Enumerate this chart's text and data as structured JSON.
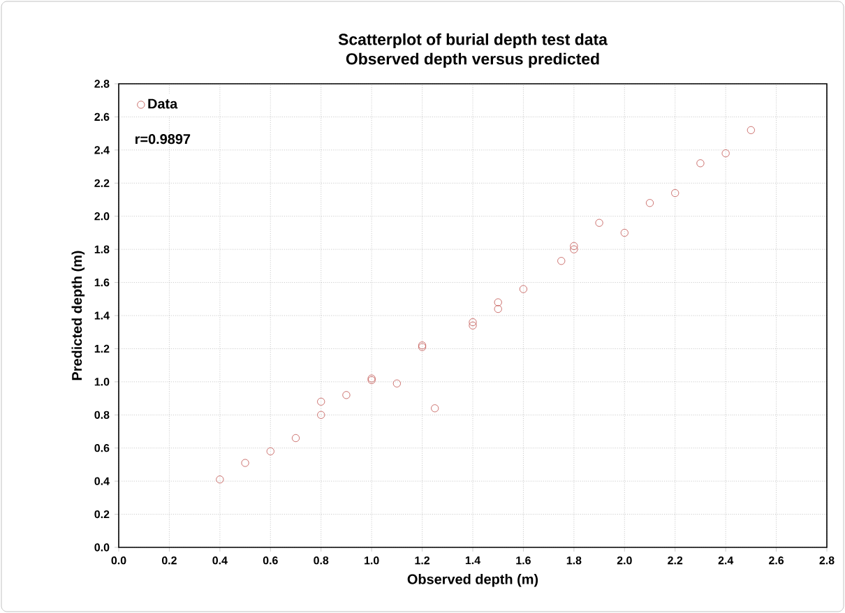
{
  "chart_data": {
    "type": "scatter",
    "title": "Scatterplot of burial depth test data\nObserved  depth versus predicted",
    "xlabel": "Observed depth (m)",
    "ylabel": "Predicted depth (m)",
    "series": [
      {
        "name": "Data",
        "color": "#c0504d",
        "x": [
          0.4,
          0.5,
          0.6,
          0.7,
          0.8,
          0.8,
          0.9,
          1.0,
          1.0,
          1.1,
          1.2,
          1.2,
          1.25,
          1.4,
          1.4,
          1.5,
          1.5,
          1.6,
          1.75,
          1.8,
          1.8,
          1.9,
          2.0,
          2.1,
          2.2,
          2.3,
          2.4,
          2.5
        ],
        "values": [
          0.41,
          0.51,
          0.58,
          0.66,
          0.88,
          0.8,
          0.92,
          1.02,
          1.01,
          0.99,
          1.21,
          1.22,
          0.84,
          1.34,
          1.36,
          1.44,
          1.48,
          1.56,
          1.73,
          1.8,
          1.82,
          1.96,
          1.9,
          2.08,
          2.14,
          2.32,
          2.38,
          2.52
        ]
      }
    ],
    "annotations": [
      "r=0.9897"
    ],
    "xlim": [
      0,
      2.8
    ],
    "ylim": [
      0,
      2.8
    ],
    "xticks": [
      {
        "value": 0,
        "label": "0.0"
      },
      {
        "value": 0.2,
        "label": "0.2"
      },
      {
        "value": 0.4,
        "label": "0.4"
      },
      {
        "value": 0.6,
        "label": "0.6"
      },
      {
        "value": 0.8,
        "label": "0.8"
      },
      {
        "value": 1,
        "label": "1.0"
      },
      {
        "value": 1.2,
        "label": "1.2"
      },
      {
        "value": 1.4,
        "label": "1.4"
      },
      {
        "value": 1.6,
        "label": "1.6"
      },
      {
        "value": 1.8,
        "label": "1.8"
      },
      {
        "value": 2,
        "label": "2.0"
      },
      {
        "value": 2.2,
        "label": "2.2"
      },
      {
        "value": 2.4,
        "label": "2.4"
      },
      {
        "value": 2.6,
        "label": "2.6"
      },
      {
        "value": 2.8,
        "label": "2.8"
      }
    ],
    "yticks": [
      {
        "value": 0,
        "label": "0.0"
      },
      {
        "value": 0.2,
        "label": "0.2"
      },
      {
        "value": 0.4,
        "label": "0.4"
      },
      {
        "value": 0.6,
        "label": "0.6"
      },
      {
        "value": 0.8,
        "label": "0.8"
      },
      {
        "value": 1,
        "label": "1.0"
      },
      {
        "value": 1.2,
        "label": "1.2"
      },
      {
        "value": 1.4,
        "label": "1.4"
      },
      {
        "value": 1.6,
        "label": "1.6"
      },
      {
        "value": 1.8,
        "label": "1.8"
      },
      {
        "value": 2,
        "label": "2.0"
      },
      {
        "value": 2.2,
        "label": "2.2"
      },
      {
        "value": 2.4,
        "label": "2.4"
      },
      {
        "value": 2.6,
        "label": "2.6"
      },
      {
        "value": 2.8,
        "label": "2.8"
      }
    ],
    "grid": true,
    "legend": "top left",
    "marker": "circle"
  }
}
